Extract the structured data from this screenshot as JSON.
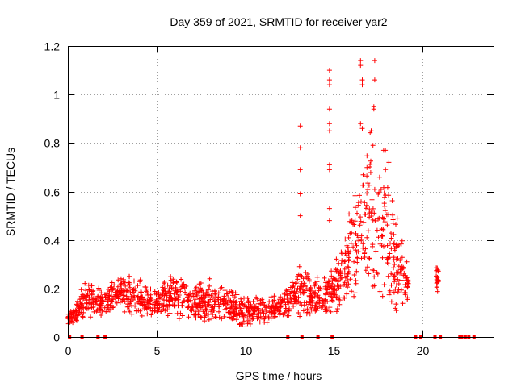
{
  "chart_data": {
    "type": "scatter",
    "title": "Day 359 of 2021, SRMTID for receiver yar2",
    "xlabel": "GPS time / hours",
    "ylabel": "SRMTID / TECUs",
    "xlim": [
      0,
      24
    ],
    "ylim": [
      0,
      1.2
    ],
    "xticks": [
      0,
      5,
      10,
      15,
      20
    ],
    "xtick_labels": [
      "0",
      "5",
      "10",
      "15",
      "20"
    ],
    "yticks": [
      0,
      0.2,
      0.4,
      0.6,
      0.8,
      1.0,
      1.2
    ],
    "ytick_labels": [
      "0",
      "0.2",
      "0.4",
      "0.6",
      "0.8",
      "1",
      "1.2"
    ],
    "grid": true,
    "marker": "+",
    "color": "#ff0000",
    "series": [
      {
        "name": "yar2",
        "description_profile": "approximate SRMTID envelope by hour",
        "envelope": [
          {
            "x": 0.0,
            "low": 0.05,
            "high": 0.1
          },
          {
            "x": 0.5,
            "low": 0.05,
            "high": 0.15
          },
          {
            "x": 1.0,
            "low": 0.07,
            "high": 0.25
          },
          {
            "x": 2.0,
            "low": 0.08,
            "high": 0.2
          },
          {
            "x": 3.0,
            "low": 0.1,
            "high": 0.28
          },
          {
            "x": 4.0,
            "low": 0.08,
            "high": 0.24
          },
          {
            "x": 5.0,
            "low": 0.08,
            "high": 0.2
          },
          {
            "x": 6.0,
            "low": 0.07,
            "high": 0.28
          },
          {
            "x": 7.0,
            "low": 0.06,
            "high": 0.22
          },
          {
            "x": 8.0,
            "low": 0.06,
            "high": 0.25
          },
          {
            "x": 9.0,
            "low": 0.05,
            "high": 0.22
          },
          {
            "x": 10.0,
            "low": 0.03,
            "high": 0.18
          },
          {
            "x": 11.0,
            "low": 0.05,
            "high": 0.16
          },
          {
            "x": 12.0,
            "low": 0.08,
            "high": 0.18
          },
          {
            "x": 13.0,
            "low": 0.08,
            "high": 0.3
          },
          {
            "x": 14.0,
            "low": 0.07,
            "high": 0.25
          },
          {
            "x": 15.0,
            "low": 0.08,
            "high": 0.3
          },
          {
            "x": 16.0,
            "low": 0.15,
            "high": 0.55
          },
          {
            "x": 17.0,
            "low": 0.15,
            "high": 0.9
          },
          {
            "x": 18.0,
            "low": 0.1,
            "high": 0.7
          },
          {
            "x": 19.0,
            "low": 0.08,
            "high": 0.35
          },
          {
            "x": 20.9,
            "low": 0.18,
            "high": 0.3
          }
        ],
        "spikes": [
          {
            "x": 13.1,
            "y": 0.87
          },
          {
            "x": 13.1,
            "y": 0.78
          },
          {
            "x": 13.1,
            "y": 0.69
          },
          {
            "x": 13.1,
            "y": 0.59
          },
          {
            "x": 13.1,
            "y": 0.5
          },
          {
            "x": 14.75,
            "y": 1.1
          },
          {
            "x": 14.75,
            "y": 1.06
          },
          {
            "x": 14.75,
            "y": 1.04
          },
          {
            "x": 14.75,
            "y": 0.94
          },
          {
            "x": 14.75,
            "y": 0.88
          },
          {
            "x": 14.75,
            "y": 0.85
          },
          {
            "x": 14.75,
            "y": 0.71
          },
          {
            "x": 14.75,
            "y": 0.69
          },
          {
            "x": 14.75,
            "y": 0.53
          },
          {
            "x": 14.75,
            "y": 0.48
          },
          {
            "x": 16.5,
            "y": 1.14
          },
          {
            "x": 16.5,
            "y": 1.12
          },
          {
            "x": 16.6,
            "y": 1.06
          },
          {
            "x": 16.6,
            "y": 1.04
          },
          {
            "x": 17.3,
            "y": 1.14
          },
          {
            "x": 17.3,
            "y": 1.06
          },
          {
            "x": 17.25,
            "y": 0.95
          },
          {
            "x": 17.25,
            "y": 0.94
          },
          {
            "x": 16.5,
            "y": 0.88
          },
          {
            "x": 16.6,
            "y": 0.86
          },
          {
            "x": 17.1,
            "y": 0.85
          },
          {
            "x": 17.2,
            "y": 0.79
          },
          {
            "x": 17.8,
            "y": 0.77
          },
          {
            "x": 17.9,
            "y": 0.77
          },
          {
            "x": 18.1,
            "y": 0.72
          }
        ],
        "zero_points_x": [
          0.1,
          0.8,
          1.7,
          2.1,
          12.4,
          13.2,
          14.1,
          14.9,
          19.6,
          19.9,
          20.7,
          21.0,
          22.1,
          22.2,
          22.4,
          22.6,
          22.9
        ]
      }
    ]
  }
}
